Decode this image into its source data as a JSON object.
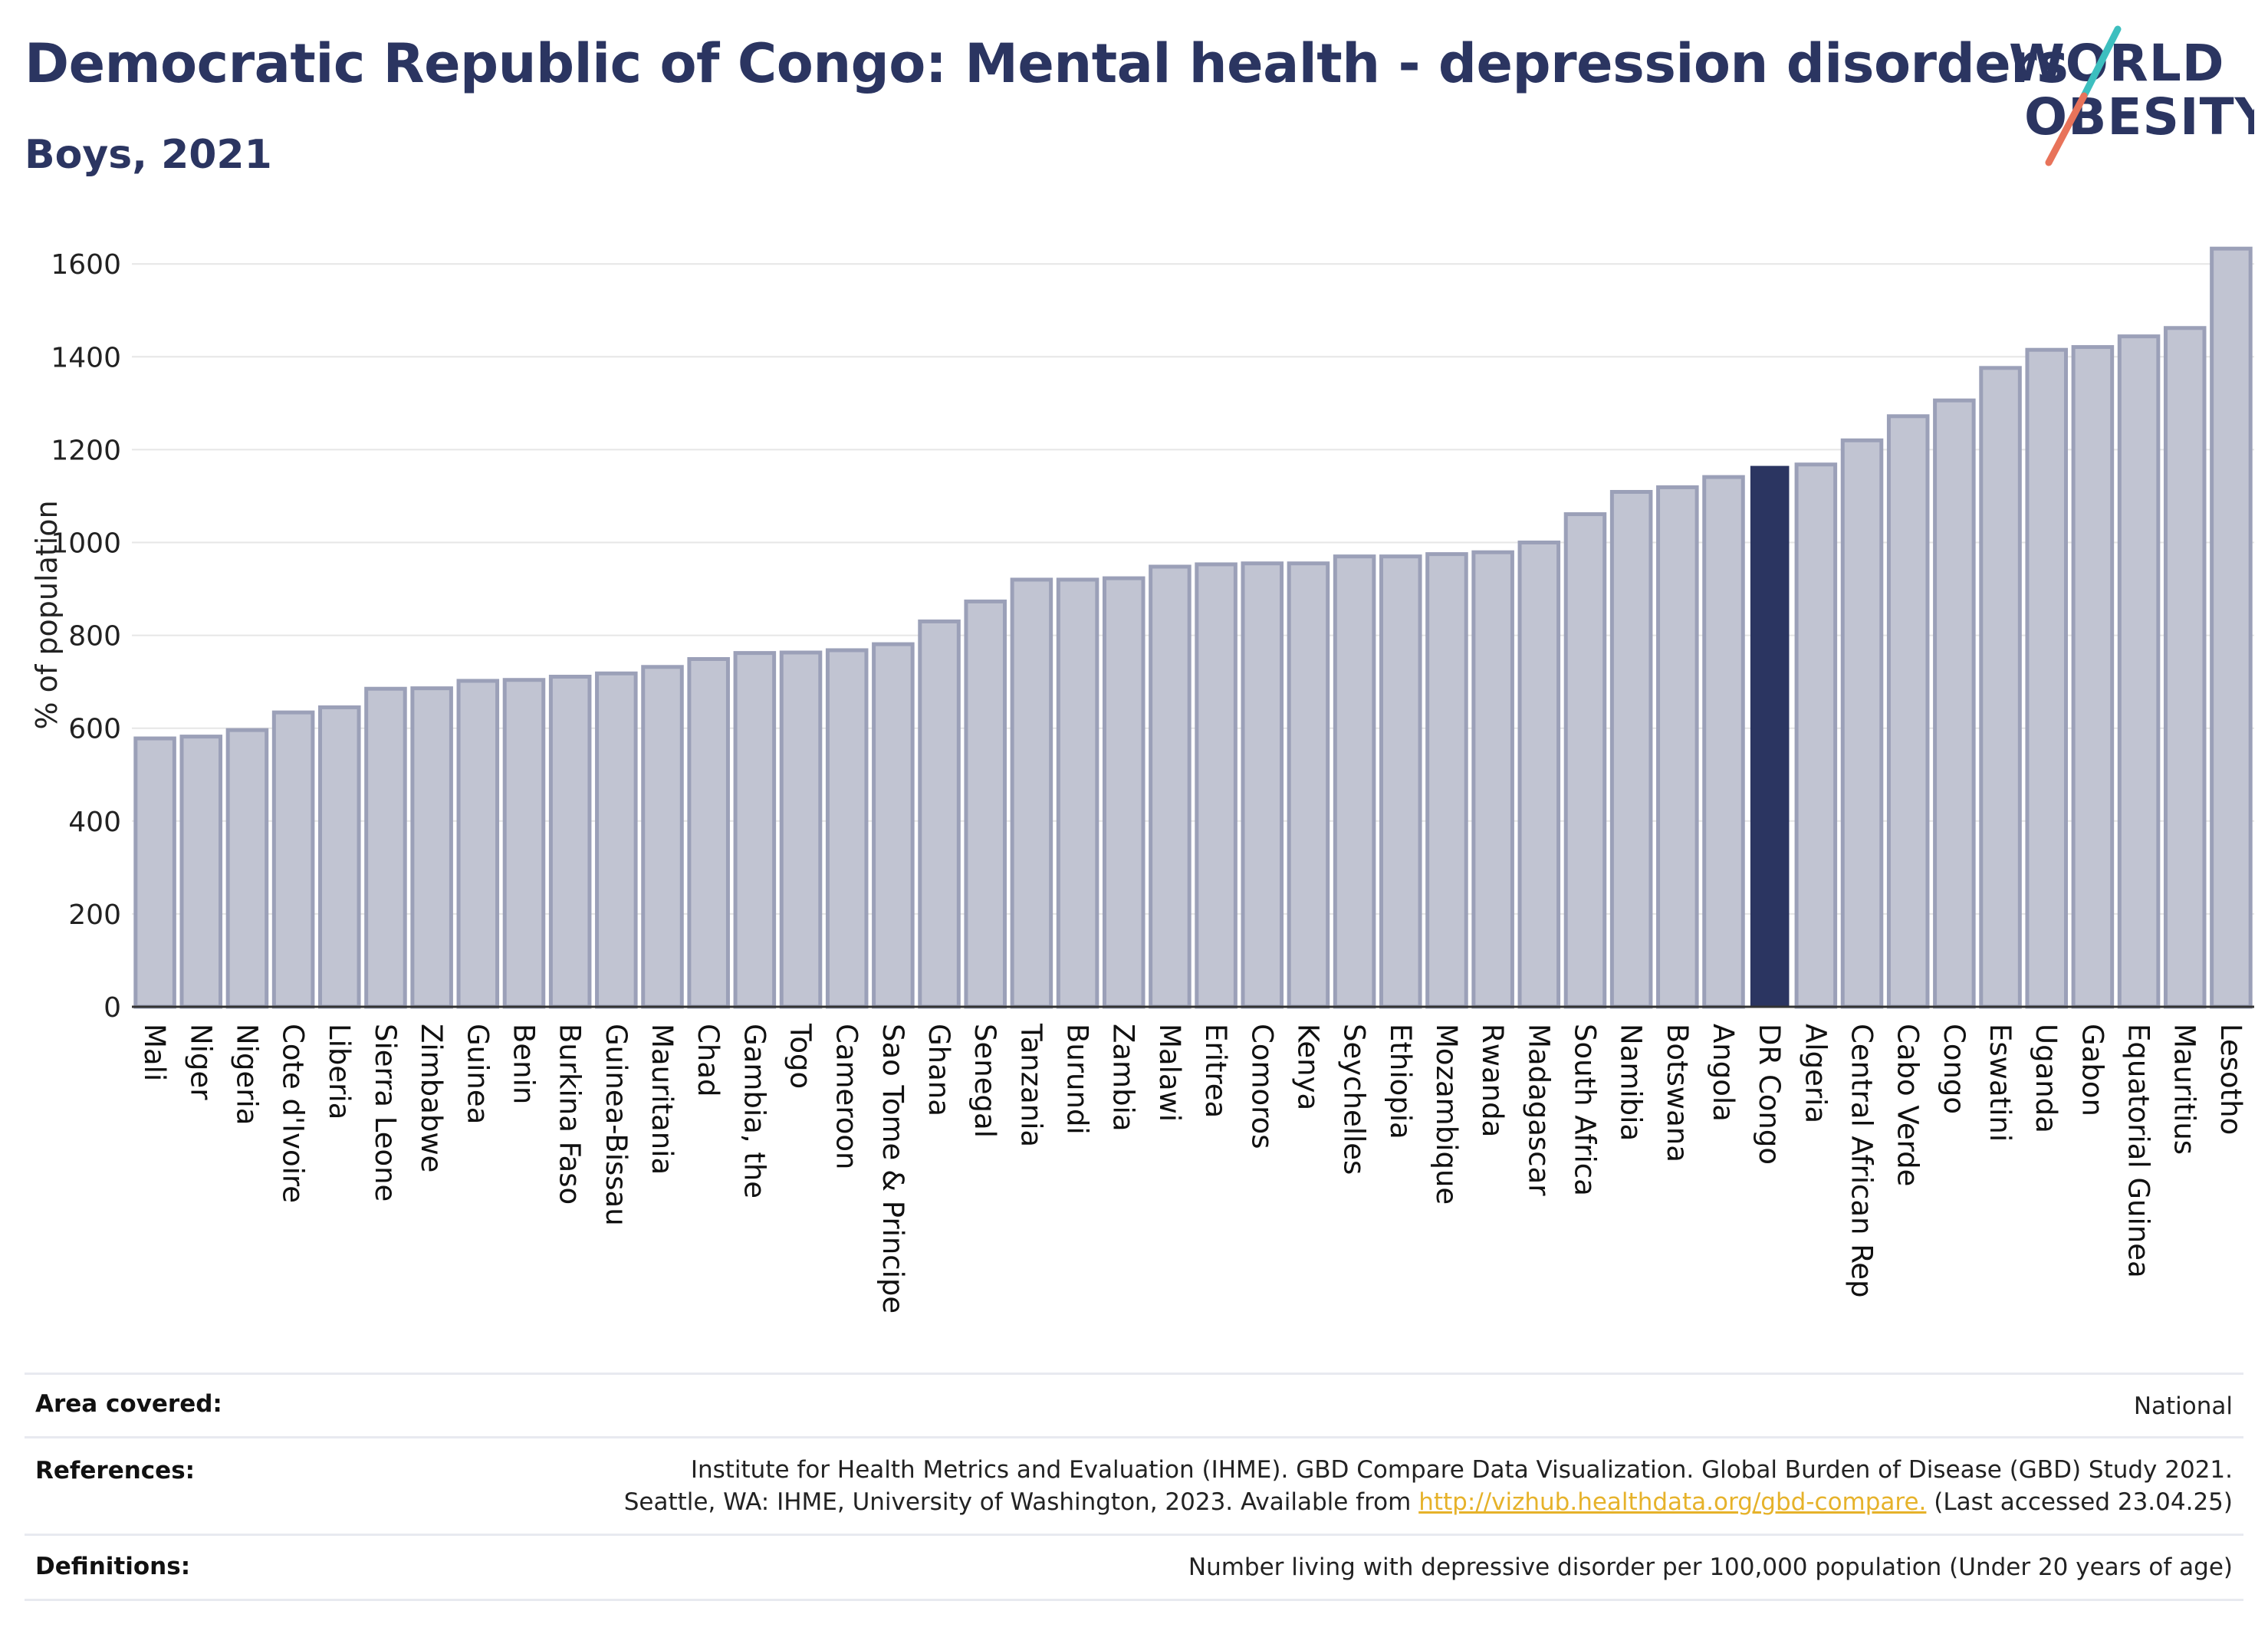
{
  "header": {
    "title": "Democratic Republic of Congo: Mental health - depression disorders",
    "subtitle": "Boys, 2021"
  },
  "logo": {
    "line1": "WORLD",
    "line2": "OBESITY",
    "slash_colors": [
      "#3dbfbf",
      "#e8735a"
    ]
  },
  "colors": {
    "bar": "#c1c4d2",
    "bar_border": "#9ba0b8",
    "highlight": "#2b3561",
    "text": "#2b3561",
    "grid": "#e6e6e6",
    "link": "#e6b22a"
  },
  "chart_data": {
    "type": "bar",
    "title": "Democratic Republic of Congo: Mental health - depression disorders",
    "subtitle": "Boys, 2021",
    "ylabel": "% of population",
    "xlabel": "",
    "ylim": [
      0,
      1650
    ],
    "yticks": [
      0,
      200,
      400,
      600,
      800,
      1000,
      1200,
      1400,
      1600
    ],
    "grid": true,
    "highlight_category": "DR Congo",
    "categories": [
      "Mali",
      "Niger",
      "Nigeria",
      "Cote d'Ivoire",
      "Liberia",
      "Sierra Leone",
      "Zimbabwe",
      "Guinea",
      "Benin",
      "Burkina Faso",
      "Guinea-Bissau",
      "Mauritania",
      "Chad",
      "Gambia, the",
      "Togo",
      "Cameroon",
      "Sao Tome & Principe",
      "Ghana",
      "Senegal",
      "Tanzania",
      "Burundi",
      "Zambia",
      "Malawi",
      "Eritrea",
      "Comoros",
      "Kenya",
      "Seychelles",
      "Ethiopia",
      "Mozambique",
      "Rwanda",
      "Madagascar",
      "South Africa",
      "Namibia",
      "Botswana",
      "Angola",
      "DR Congo",
      "Algeria",
      "Central African Rep",
      "Cabo Verde",
      "Congo",
      "Eswatini",
      "Uganda",
      "Gabon",
      "Equatorial Guinea",
      "Mauritius",
      "Lesotho"
    ],
    "values": [
      578,
      582,
      596,
      634,
      645,
      685,
      686,
      702,
      704,
      711,
      718,
      732,
      749,
      762,
      763,
      768,
      781,
      830,
      873,
      920,
      920,
      923,
      948,
      953,
      955,
      955,
      970,
      970,
      975,
      979,
      1000,
      1061,
      1109,
      1119,
      1141,
      1165,
      1168,
      1220,
      1272,
      1306,
      1376,
      1415,
      1421,
      1444,
      1462,
      1633
    ]
  },
  "info": {
    "area_label": "Area covered:",
    "area_value": "National",
    "references_label": "References:",
    "references_line1": "Institute for Health Metrics and Evaluation (IHME). GBD Compare Data Visualization. Global Burden of Disease (GBD) Study 2021.",
    "references_line2_pre": "Seattle, WA: IHME, University of Washington, 2023. Available from ",
    "references_link": "http://vizhub.healthdata.org/gbd-compare.",
    "references_line2_post": " (Last accessed 23.04.25)",
    "definitions_label": "Definitions:",
    "definitions_value": "Number living with depressive disorder per 100,000 population (Under 20 years of age)"
  }
}
